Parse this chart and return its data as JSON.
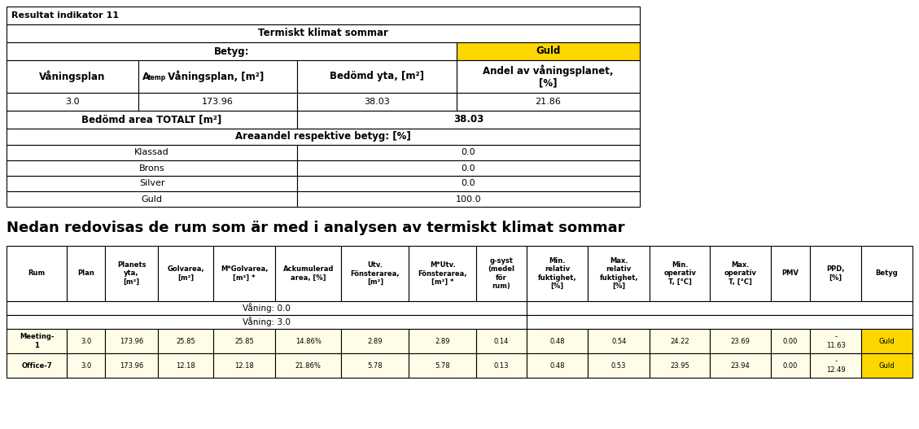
{
  "title1": "Resultat indikator 11",
  "table1": {
    "header_row1": "Termiskt klimat sommar",
    "betyg_label": "Betyg:",
    "betyg_value": "Guld",
    "betyg_bg": "#FFD700",
    "col_headers": [
      "Våningsplan",
      "A_temp Våningsplan, [m²]",
      "Bedömd yta, [m²]",
      "Andel av våningsplanet,\n[%]"
    ],
    "data_row": [
      "3.0",
      "173.96",
      "38.03",
      "21.86"
    ],
    "totalt_label": "Bedömd area TOTALT [m²]",
    "totalt_value": "38.03",
    "area_header": "Areaandel respektive betyg: [%]",
    "area_rows": [
      [
        "Klassad",
        "0.0"
      ],
      [
        "Brons",
        "0.0"
      ],
      [
        "Silver",
        "0.0"
      ],
      [
        "Guld",
        "100.0"
      ]
    ]
  },
  "middle_text": "Nedan redovisas de rum som är med i analysen av termiskt klimat sommar",
  "table2": {
    "col_headers": [
      "Rum",
      "Plan",
      "Planets\nyta,\n[m²]",
      "Golvarea,\n[m²]",
      "M*Golvarea,\n[m²] *",
      "Ackumulerad\narea, [%]",
      "Utv.\nFönsterarea,\n[m²]",
      "M*Utv.\nFönsterarea,\n[m²] *",
      "g-syst\n(medel\nför\nrum)",
      "Min.\nrelativ\nfuktighet,\n[%]",
      "Max.\nrelativ\nfuktighet,\n[%]",
      "Min.\noperativ\nT, [°C]",
      "Max.\noperativ\nT, [°C]",
      "PMV",
      "PPD,\n[%]",
      "Betyg"
    ],
    "vaning_rows": [
      "Våning: 0.0",
      "Våning: 3.0"
    ],
    "data_rows": [
      [
        "Meeting-\n1",
        "3.0",
        "173.96",
        "25.85",
        "25.85",
        "14.86%",
        "2.89",
        "2.89",
        "0.14",
        "0.48",
        "0.54",
        "24.22",
        "23.69",
        "0.00",
        "-\n11.63",
        "Guld"
      ],
      [
        "Office-7",
        "3.0",
        "173.96",
        "12.18",
        "12.18",
        "21.86%",
        "5.78",
        "5.78",
        "0.13",
        "0.48",
        "0.53",
        "23.95",
        "23.94",
        "0.00",
        "-\n12.49",
        "Guld"
      ]
    ],
    "guld_bg": "#FFD700",
    "light_yellow": "#FFFDE7"
  },
  "border_color": "#000000",
  "white": "#FFFFFF",
  "light_yellow": "#FFFDE7"
}
